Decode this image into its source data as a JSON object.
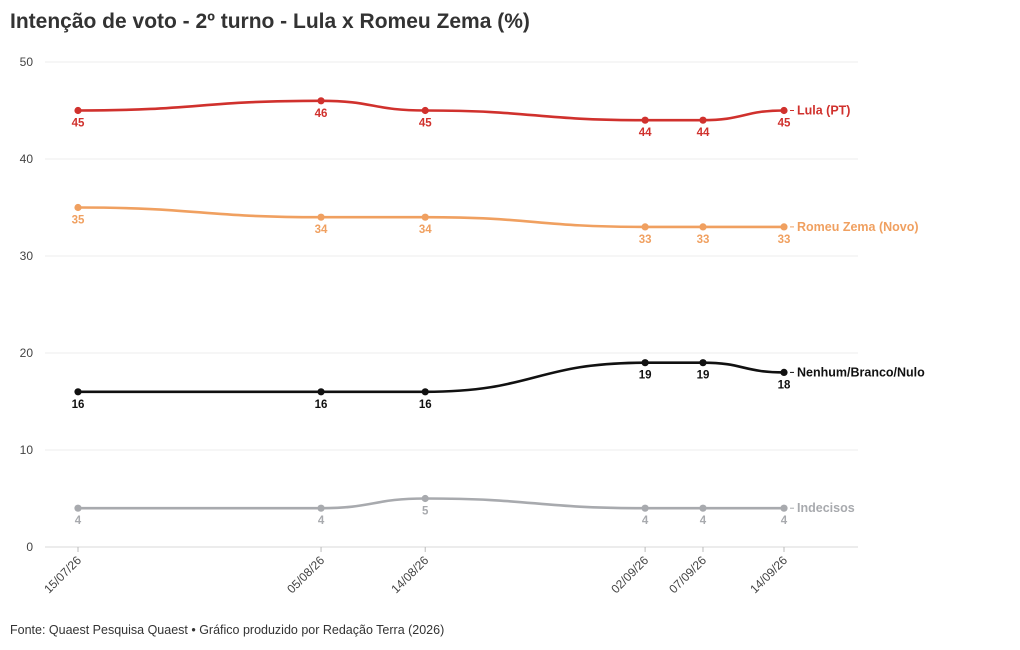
{
  "chart_data": {
    "type": "line",
    "title": "Intenção de voto - 2º turno - Lula x Romeu Zema (%)",
    "source": "Fonte: Quaest Pesquisa Quaest • Gráfico produzido por Redação Terra (2026)",
    "x": [
      "15/07/26",
      "05/08/26",
      "14/08/26",
      "02/09/26",
      "07/09/26",
      "14/09/26"
    ],
    "ylim": [
      0,
      50
    ],
    "yticks": [
      0,
      10,
      20,
      30,
      40,
      50
    ],
    "grid": true,
    "series": [
      {
        "name": "Lula (PT)",
        "color": "#d0312d",
        "values": [
          45,
          46,
          45,
          44,
          44,
          45
        ],
        "label_pos": "below"
      },
      {
        "name": "Romeu Zema (Novo)",
        "color": "#f0a060",
        "values": [
          35,
          34,
          34,
          33,
          33,
          33
        ],
        "label_pos": "below"
      },
      {
        "name": "Nenhum/Branco/Nulo",
        "color": "#111111",
        "values": [
          16,
          16,
          16,
          19,
          19,
          18
        ],
        "label_pos": "below"
      },
      {
        "name": "Indecisos",
        "color": "#a8aaae",
        "values": [
          4,
          4,
          5,
          4,
          4,
          4
        ],
        "label_pos": "below"
      }
    ]
  }
}
